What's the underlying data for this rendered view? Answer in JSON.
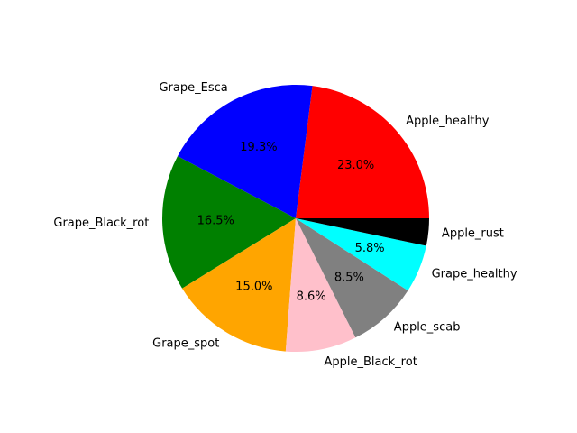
{
  "chart_data": {
    "type": "pie",
    "slices": [
      {
        "label": "Apple_healthy",
        "value": 23.0,
        "pct_label": "23.0%",
        "color": "#ff0000"
      },
      {
        "label": "Grape_Esca",
        "value": 19.3,
        "pct_label": "19.3%",
        "color": "#0000ff"
      },
      {
        "label": "Grape_Black_rot",
        "value": 16.5,
        "pct_label": "16.5%",
        "color": "#008000"
      },
      {
        "label": "Grape_spot",
        "value": 15.0,
        "pct_label": "15.0%",
        "color": "#ffa500"
      },
      {
        "label": "Apple_Black_rot",
        "value": 8.6,
        "pct_label": "8.6%",
        "color": "#ffc0cb"
      },
      {
        "label": "Apple_scab",
        "value": 8.5,
        "pct_label": "8.5%",
        "color": "#808080"
      },
      {
        "label": "Grape_healthy",
        "value": 5.8,
        "pct_label": "5.8%",
        "color": "#00ffff"
      },
      {
        "label": "Apple_rust",
        "value": 3.3,
        "pct_label": "",
        "color": "#000000"
      }
    ]
  }
}
